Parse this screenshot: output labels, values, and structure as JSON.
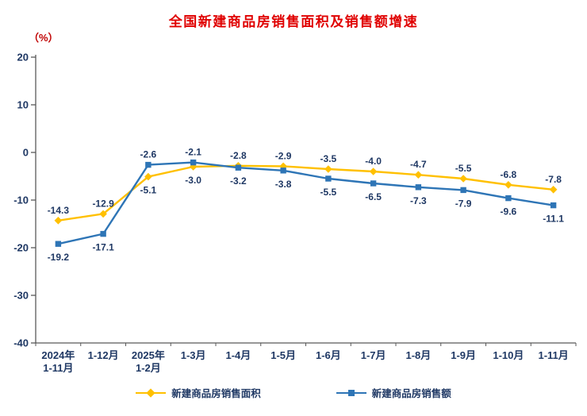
{
  "colors": {
    "title": "#e00000",
    "unit": "#c00000",
    "axis_text": "#1f3864",
    "axis_line": "#595959",
    "series_area": "#ffc000",
    "series_amount": "#2e75b6"
  },
  "chart_data": {
    "type": "line",
    "title": "全国新建商品房销售面积及销售额增速",
    "ylabel": "（%）",
    "xlabel": "",
    "ylim": [
      -40,
      20
    ],
    "ytick_step": 10,
    "grid": false,
    "legend_position": "bottom",
    "categories": [
      "2024年\n1-11月",
      "1-12月",
      "2025年\n1-2月",
      "1-3月",
      "1-4月",
      "1-5月",
      "1-6月",
      "1-7月",
      "1-8月",
      "1-9月",
      "1-10月",
      "1-11月"
    ],
    "series": [
      {
        "name": "新建商品房销售面积",
        "color": "#ffc000",
        "marker": "diamond",
        "values": [
          -14.3,
          -12.9,
          -5.1,
          -3.0,
          -2.8,
          -2.9,
          -3.5,
          -4.0,
          -4.7,
          -5.5,
          -6.8,
          -7.8
        ],
        "label_positions": [
          "above",
          "above",
          "below",
          "below",
          "above",
          "above",
          "above",
          "above",
          "above",
          "above",
          "above",
          "above"
        ]
      },
      {
        "name": "新建商品房销售额",
        "color": "#2e75b6",
        "marker": "square",
        "values": [
          -19.2,
          -17.1,
          -2.6,
          -2.1,
          -3.2,
          -3.8,
          -5.5,
          -6.5,
          -7.3,
          -7.9,
          -9.6,
          -11.1
        ],
        "label_positions": [
          "below",
          "below",
          "above",
          "above",
          "below",
          "below",
          "below",
          "below",
          "below",
          "below",
          "below",
          "below"
        ]
      }
    ],
    "ytick_labels": [
      "20",
      "10",
      "0",
      "-10",
      "-20",
      "-30",
      "-40"
    ]
  }
}
